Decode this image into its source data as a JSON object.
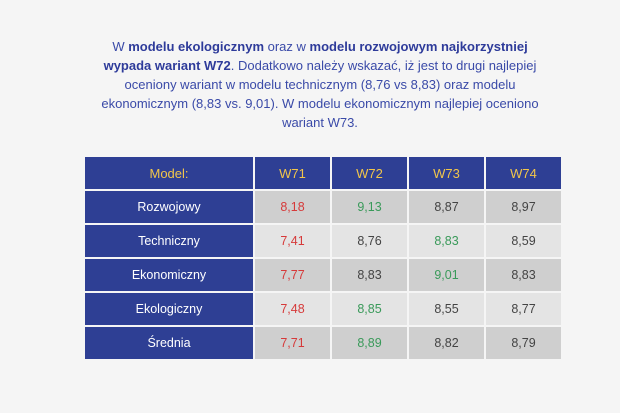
{
  "summary": {
    "p1": "W ",
    "b1": "modelu ekologicznym",
    "p2": " oraz w ",
    "b2": "modelu rozwojowym najkorzystniej wypada wariant W72",
    "p3": ". Dodatkowo należy wskazać, iż jest to drugi najlepiej oceniony wariant w modelu technicznym (8,76 vs 8,83) oraz modelu ekonomicznym (8,83 vs. 9,01). W modelu ekonomicznym najlepiej oceniono wariant W73."
  },
  "table": {
    "headers": [
      "Model:",
      "W71",
      "W72",
      "W73",
      "W74"
    ],
    "rows": [
      {
        "label": "Rozwojowy",
        "values": [
          "8,18",
          "9,13",
          "8,87",
          "8,97"
        ]
      },
      {
        "label": "Techniczny",
        "values": [
          "7,41",
          "8,76",
          "8,83",
          "8,59"
        ]
      },
      {
        "label": "Ekonomiczny",
        "values": [
          "7,77",
          "8,83",
          "9,01",
          "8,83"
        ]
      },
      {
        "label": "Ekologiczny",
        "values": [
          "7,48",
          "8,85",
          "8,55",
          "8,77"
        ]
      },
      {
        "label": "Średnia",
        "values": [
          "7,71",
          "8,89",
          "8,82",
          "8,79"
        ]
      }
    ]
  },
  "colors": {
    "header_bg": "#2e3f94",
    "header_text": "#f2c64a",
    "worst": "#d63a3a",
    "best": "#3a9a5a"
  }
}
